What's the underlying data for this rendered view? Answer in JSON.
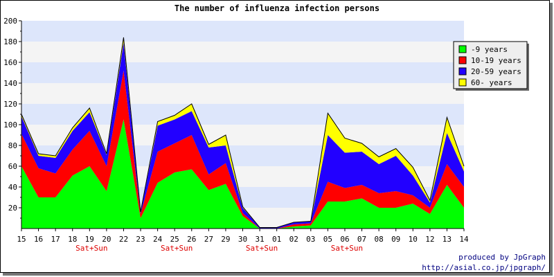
{
  "chart_data": {
    "type": "area",
    "title": "The number of influenza infection persons",
    "categories": [
      "15",
      "16",
      "17",
      "18",
      "19",
      "20",
      "22",
      "23",
      "24",
      "25",
      "26",
      "27",
      "29",
      "30",
      "31",
      "01",
      "02",
      "03",
      "05",
      "06",
      "07",
      "08",
      "09",
      "10",
      "12",
      "13",
      "14"
    ],
    "weekend_labels": [
      {
        "category": "19",
        "text": "Sat+Sun"
      },
      {
        "category": "25",
        "text": "Sat+Sun"
      },
      {
        "category": "31",
        "text": "Sat+Sun"
      },
      {
        "category": "06",
        "text": "Sat+Sun"
      }
    ],
    "ylim": [
      0,
      200
    ],
    "yticks": [
      20,
      40,
      60,
      80,
      100,
      120,
      140,
      160,
      180,
      200
    ],
    "stacked": true,
    "series": [
      {
        "name": "-9 years",
        "color": "#00ff00",
        "values": [
          60,
          30,
          30,
          51,
          60,
          36,
          105,
          10,
          44,
          54,
          57,
          37,
          43,
          12,
          0,
          0,
          2,
          3,
          26,
          26,
          29,
          20,
          20,
          24,
          14,
          42,
          20
        ]
      },
      {
        "name": "10-19 years",
        "color": "#ff0000",
        "values": [
          31,
          28,
          23,
          25,
          34,
          24,
          47,
          4,
          30,
          28,
          33,
          15,
          20,
          3,
          0,
          0,
          2,
          2,
          19,
          13,
          13,
          14,
          16,
          8,
          6,
          20,
          20
        ]
      },
      {
        "name": "20-59 years",
        "color": "#2200ff",
        "values": [
          17,
          12,
          15,
          18,
          18,
          11,
          27,
          2,
          25,
          23,
          23,
          26,
          17,
          5,
          1,
          1,
          2,
          2,
          45,
          34,
          32,
          28,
          34,
          19,
          5,
          30,
          15
        ]
      },
      {
        "name": "60- years",
        "color": "#ffff00",
        "values": [
          2,
          2,
          2,
          3,
          4,
          1,
          5,
          0,
          4,
          4,
          7,
          3,
          10,
          1,
          0,
          0,
          0,
          0,
          21,
          14,
          8,
          7,
          7,
          8,
          2,
          15,
          5
        ]
      }
    ],
    "legend_position": "right",
    "grid": "horizontal bands"
  },
  "credit": {
    "line1": "produced by JpGraph",
    "line2": "http://asial.co.jp/jpgraph/"
  }
}
